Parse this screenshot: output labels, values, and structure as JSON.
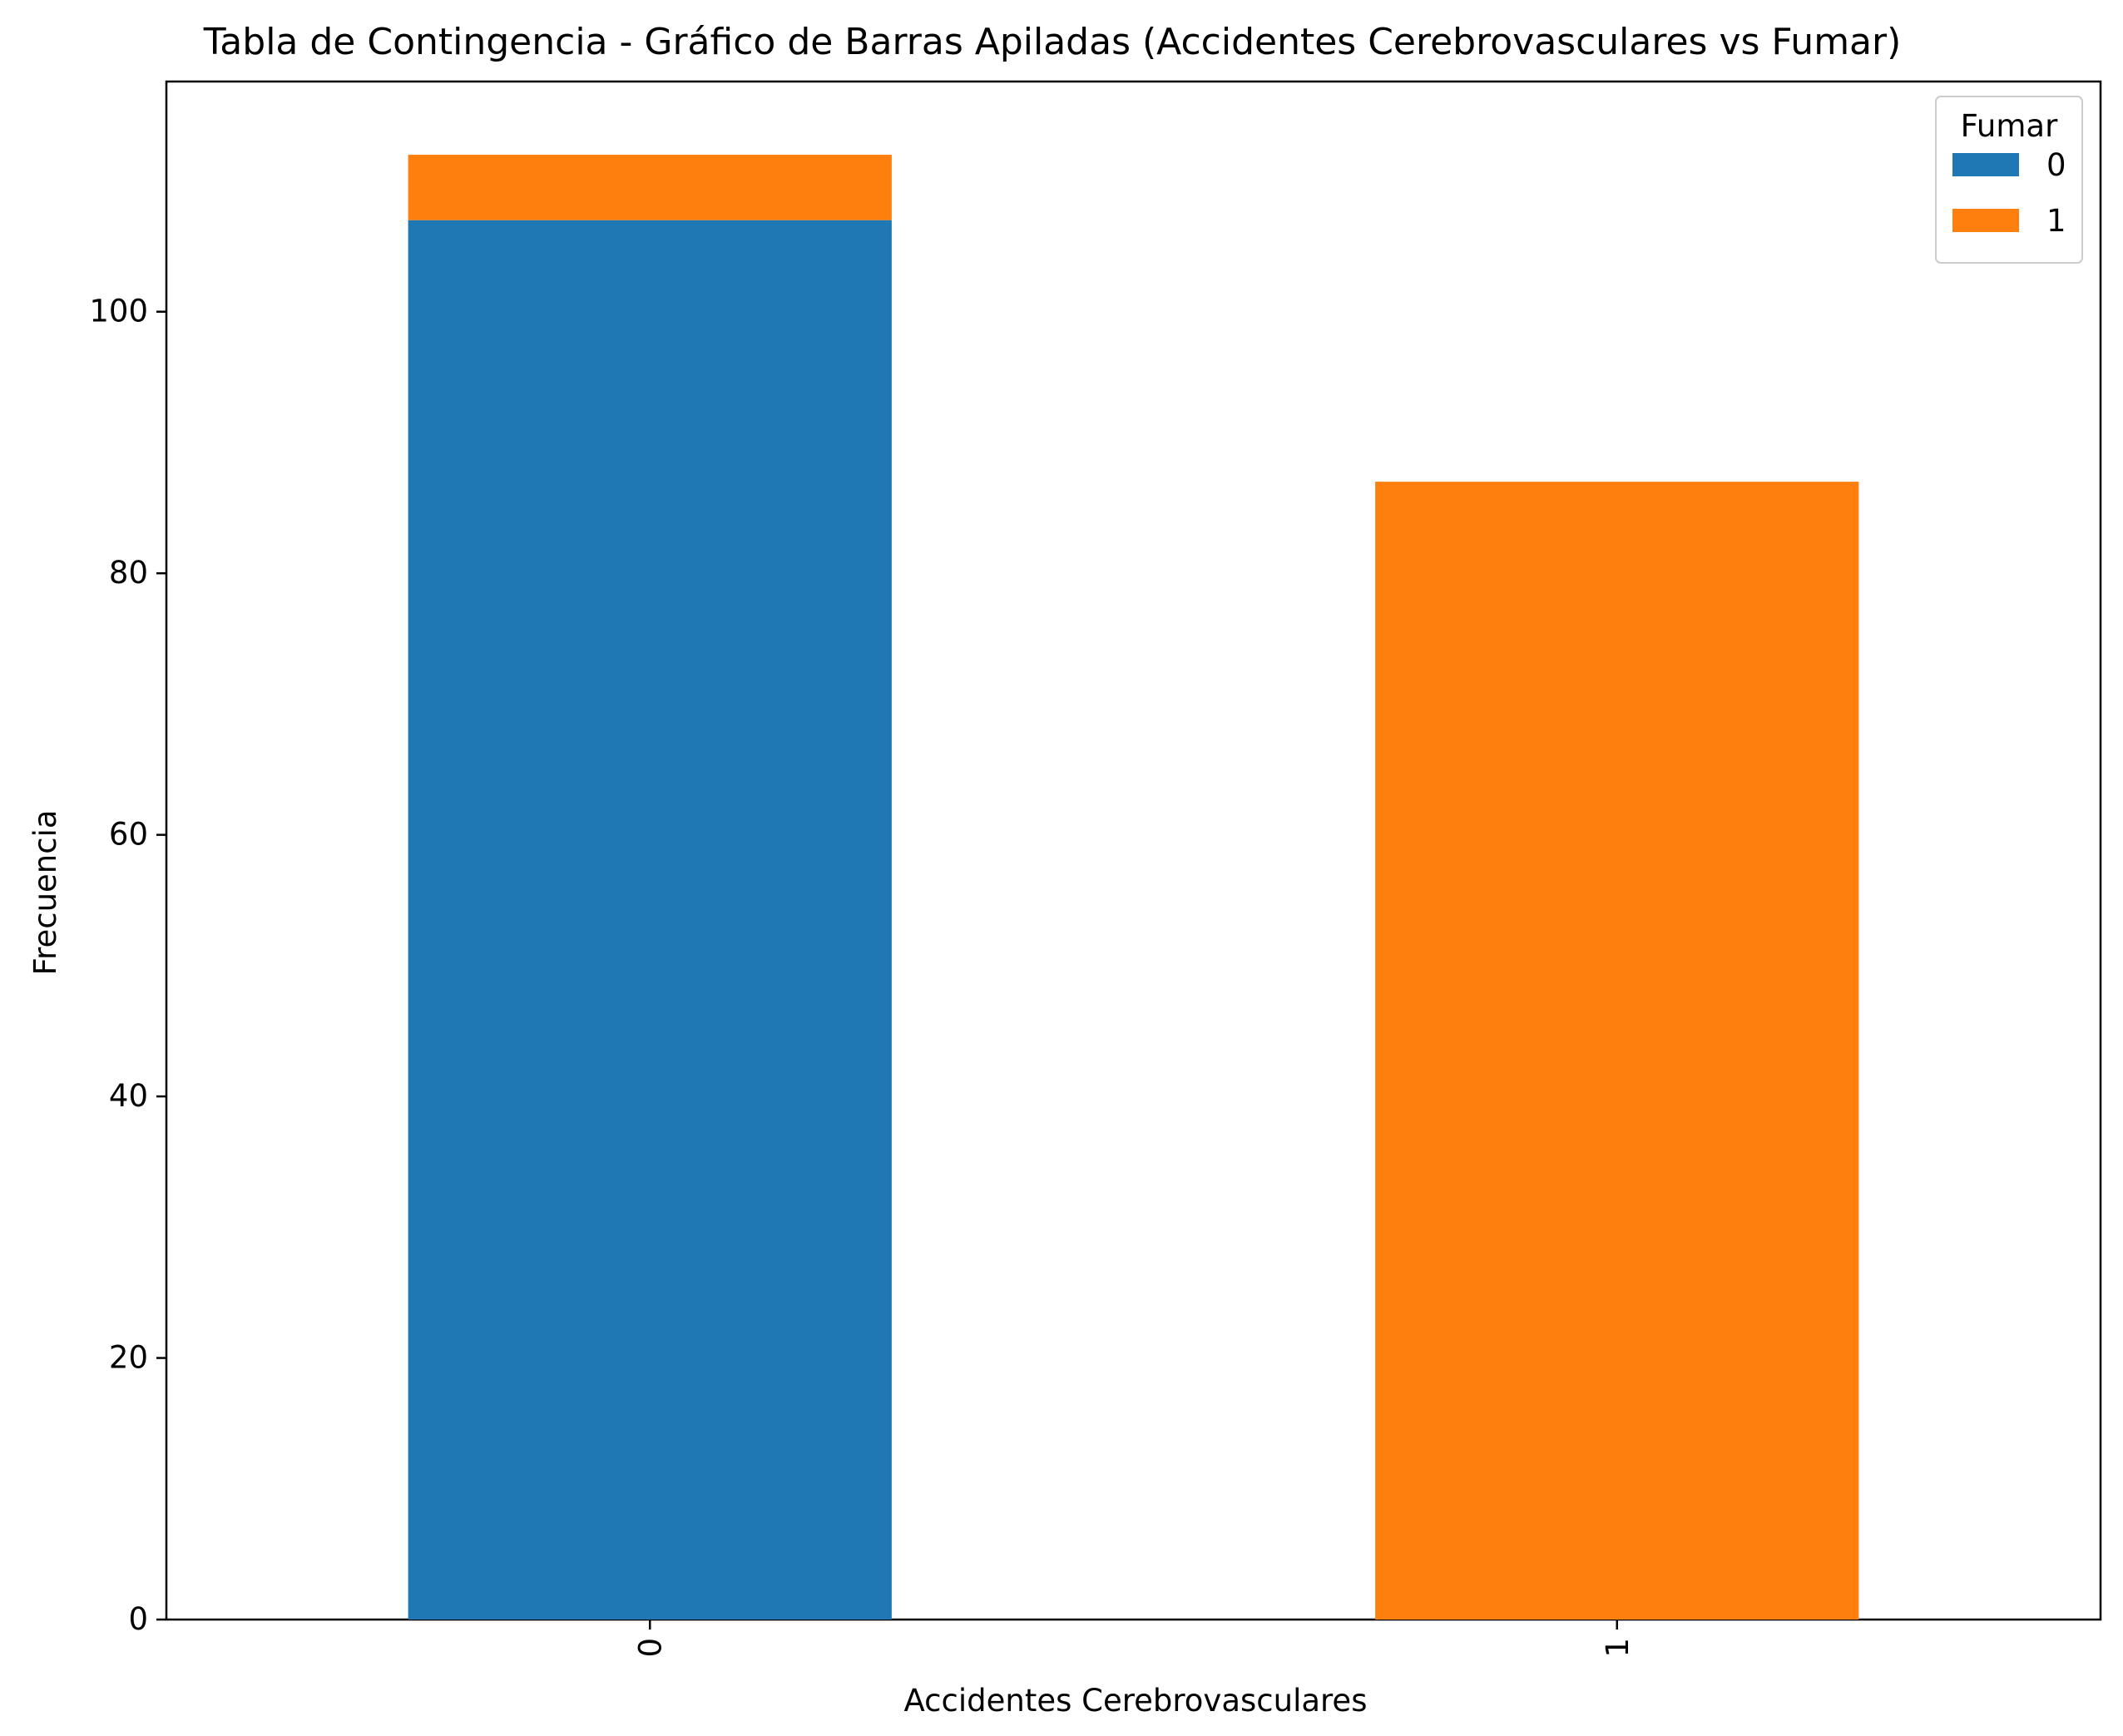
{
  "chart_data": {
    "type": "bar",
    "stacked": true,
    "title": "Tabla de Contingencia - Gráfico de Barras Apiladas (Accidentes Cerebrovasculares vs Fumar)",
    "xlabel": "Accidentes Cerebrovasculares",
    "ylabel": "Frecuencia",
    "categories": [
      "0",
      "1"
    ],
    "series": [
      {
        "name": "0",
        "values": [
          107,
          0
        ],
        "color": "#1f77b4"
      },
      {
        "name": "1",
        "values": [
          5,
          87
        ],
        "color": "#ff7f0e"
      }
    ],
    "ylim": [
      0,
      117.6
    ],
    "yticks": [
      0,
      20,
      40,
      60,
      80,
      100
    ],
    "xtick_rotation": "vertical",
    "legend": {
      "title": "Fumar",
      "position": "top-right"
    },
    "grid": false
  }
}
